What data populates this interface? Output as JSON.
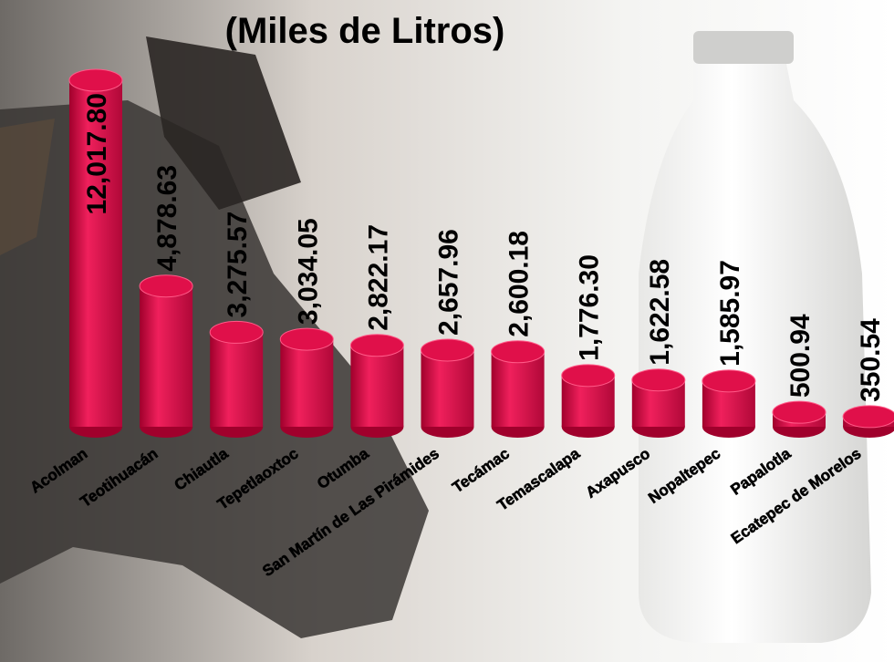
{
  "chart_data": {
    "type": "bar",
    "title": "(Miles de Litros)",
    "categories": [
      "Acolman",
      "Teotihuacán",
      "Chiautla",
      "Tepetlaoxtoc",
      "Otumba",
      "San Martín de Las Pirámides",
      "Tecámac",
      "Temascalapa",
      "Axapusco",
      "Nopaltepec",
      "Papalotla",
      "Ecatepec de Morelos"
    ],
    "values": [
      12017.8,
      4878.63,
      3275.57,
      3034.05,
      2822.17,
      2657.96,
      2600.18,
      1776.3,
      1622.58,
      1585.97,
      500.94,
      350.54
    ],
    "value_labels": [
      "12,017.80",
      "4,878.63",
      "3,275.57",
      "3,034.05",
      "2,822.17",
      "2,657.96",
      "2,600.18",
      "1,776.30",
      "1,622.58",
      "1,585.97",
      "500.94",
      "350.54"
    ],
    "color": "#e0104a"
  }
}
